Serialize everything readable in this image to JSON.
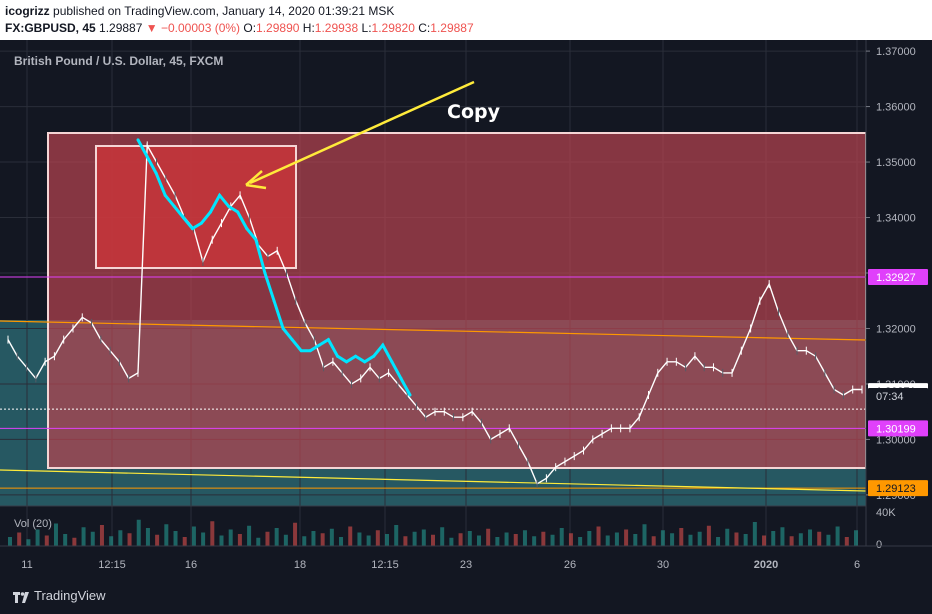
{
  "header": {
    "author": "icogrizz",
    "published_text": "published on TradingView.com, January 14, 2020 01:39:21 MSK",
    "symbol": "FX:GBPUSD, 45",
    "last": "1.29887",
    "change": "▼ −0.00003 (0%)",
    "ohlc": {
      "o_label": "O:",
      "o": "1.29890",
      "h_label": "H:",
      "h": "1.29938",
      "l_label": "L:",
      "l": "1.29820",
      "c_label": "C:",
      "c": "1.29887"
    }
  },
  "footer": {
    "brand": "TradingView"
  },
  "colors": {
    "background": "#131722",
    "up": "#26a69a",
    "down": "#ef5350",
    "highlight": "#00e5ff",
    "magenta": "#e040fb",
    "orange": "#ff9800",
    "annotation": "#ffeb3b"
  },
  "chart_data": {
    "type": "line",
    "title": "British Pound / U.S. Dollar, 45, FXCM",
    "ylim": [
      1.288,
      1.372
    ],
    "y_ticks": [
      1.29,
      1.3,
      1.31,
      1.32,
      1.33,
      1.34,
      1.35,
      1.36,
      1.37
    ],
    "y_tick_labels": [
      "1.29000",
      "1.30000",
      "1.31000",
      "1.32000",
      "1.33000",
      "1.34000",
      "1.35000",
      "1.36000",
      "1.37000"
    ],
    "x_tick_labels": [
      "11",
      "12:15",
      "16",
      "18",
      "12:15",
      "23",
      "26",
      "30",
      "2020",
      "6"
    ],
    "grid": true,
    "series": [
      {
        "values": [
          1.318,
          1.315,
          1.313,
          1.311,
          1.314,
          1.315,
          1.318,
          1.32,
          1.322,
          1.321,
          1.318,
          1.316,
          1.314,
          1.311,
          1.312,
          1.353,
          1.35,
          1.347,
          1.344,
          1.34,
          1.338,
          1.332,
          1.336,
          1.339,
          1.342,
          1.344,
          1.34,
          1.335,
          1.333,
          1.334,
          1.33,
          1.325,
          1.321,
          1.318,
          1.313,
          1.314,
          1.312,
          1.31,
          1.311,
          1.313,
          1.311,
          1.312,
          1.31,
          1.308,
          1.306,
          1.304,
          1.305,
          1.305,
          1.304,
          1.304,
          1.305,
          1.303,
          1.3,
          1.301,
          1.302,
          1.299,
          1.296,
          1.292,
          1.293,
          1.295,
          1.296,
          1.297,
          1.298,
          1.3,
          1.301,
          1.302,
          1.302,
          1.302,
          1.304,
          1.308,
          1.312,
          1.314,
          1.314,
          1.313,
          1.315,
          1.313,
          1.313,
          1.312,
          1.312,
          1.316,
          1.32,
          1.325,
          1.328,
          1.323,
          1.319,
          1.316,
          1.316,
          1.315,
          1.312,
          1.309,
          1.308,
          1.309,
          1.309
        ]
      },
      {
        "values": [
          1.354,
          1.351,
          1.348,
          1.344,
          1.342,
          1.34,
          1.338,
          1.339,
          1.341,
          1.344,
          1.342,
          1.341,
          1.338,
          1.336,
          1.33,
          1.325,
          1.32,
          1.318,
          1.316,
          1.316,
          1.317,
          1.318,
          1.315,
          1.314,
          1.315,
          1.314,
          1.315,
          1.317,
          1.314,
          1.311,
          1.308
        ]
      }
    ],
    "annotations": [
      {
        "text": "Copy",
        "color": "#ffffff"
      }
    ],
    "price_labels": [
      {
        "value": 1.32927,
        "label": "1.32927",
        "color": "#e040fb"
      },
      {
        "value": 1.30871,
        "label": "1.30871",
        "color": "#ffffff"
      },
      {
        "label": "07:34"
      },
      {
        "value": 1.30199,
        "label": "1.30199",
        "color": "#e040fb"
      },
      {
        "value": 1.29123,
        "label": "1.29123",
        "color": "#ff9800"
      }
    ],
    "volume": {
      "label": "Vol (20)",
      "tick_labels": [
        "40K",
        "0"
      ],
      "values": [
        12,
        18,
        9,
        22,
        14,
        30,
        16,
        11,
        25,
        19,
        28,
        13,
        21,
        17,
        35,
        24,
        15,
        29,
        20,
        12,
        26,
        18,
        33,
        14,
        22,
        16,
        27,
        11,
        19,
        24,
        15,
        31,
        13,
        20,
        17,
        23,
        12,
        26,
        18,
        14,
        21,
        16,
        28,
        13,
        19,
        22,
        15,
        25,
        11,
        17,
        20,
        14,
        23,
        12,
        18,
        16,
        21,
        13,
        19,
        15,
        24,
        17,
        12,
        20,
        26,
        14,
        18,
        22,
        16,
        29,
        13,
        21,
        17,
        24,
        15,
        19,
        27,
        12,
        23,
        18,
        16,
        32,
        14,
        20,
        25,
        13,
        17,
        22,
        19,
        15,
        26,
        12,
        21
      ]
    }
  }
}
